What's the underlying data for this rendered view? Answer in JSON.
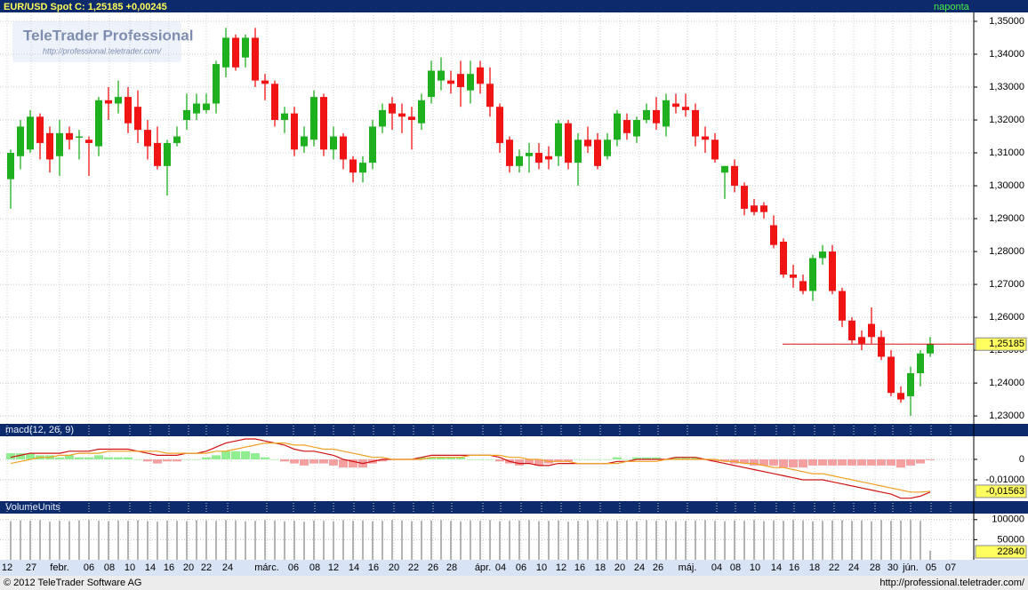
{
  "header": {
    "title": "EUR/USD  Spot  C: 1,25185  +0,00245",
    "period": "naponta"
  },
  "logo": {
    "name": "TeleTrader Professional",
    "url": "http://professional.teletrader.com/"
  },
  "footer": {
    "copyright": "© 2012 TeleTrader Software AG",
    "url": "http://professional.teletrader.com/"
  },
  "chart_data": [
    {
      "type": "candlestick",
      "x_labels": [
        "12",
        "27",
        "febr.",
        "06",
        "08",
        "10",
        "14",
        "16",
        "20",
        "22",
        "24",
        "márc.",
        "06",
        "08",
        "12",
        "14",
        "16",
        "20",
        "22",
        "26",
        "28",
        "ápr.",
        "04",
        "06",
        "10",
        "12",
        "16",
        "18",
        "20",
        "24",
        "26",
        "máj.",
        "04",
        "08",
        "10",
        "14",
        "16",
        "18",
        "22",
        "24",
        "28",
        "30",
        "jún.",
        "05",
        "07"
      ],
      "open": [
        1.302,
        1.309,
        1.311,
        1.321,
        1.316,
        1.309,
        1.316,
        1.315,
        1.314,
        1.312,
        1.326,
        1.325,
        1.327,
        1.324,
        1.317,
        1.313,
        1.306,
        1.313,
        1.32,
        1.322,
        1.323,
        1.325,
        1.336,
        1.345,
        1.339,
        1.345,
        1.332,
        1.331,
        1.32,
        1.322,
        1.312,
        1.314,
        1.327,
        1.311,
        1.315,
        1.308,
        1.304,
        1.307,
        1.318,
        1.325,
        1.322,
        1.321,
        1.319,
        1.327,
        1.332,
        1.332,
        1.334,
        1.329,
        1.336,
        1.331,
        1.324,
        1.314,
        1.306,
        1.309,
        1.31,
        1.309,
        1.309,
        1.319,
        1.307,
        1.314,
        1.314,
        1.309,
        1.314,
        1.32,
        1.315,
        1.32,
        1.323,
        1.318,
        1.325,
        1.324,
        1.323,
        1.315,
        1.314,
        1.304,
        1.306,
        1.3,
        1.294,
        1.294,
        1.288,
        1.283,
        1.273,
        1.271,
        1.268,
        1.278,
        1.28,
        1.268,
        1.259,
        1.254,
        1.258,
        1.254,
        1.248,
        1.237,
        1.236,
        1.243,
        1.249
      ],
      "high": [
        1.311,
        1.32,
        1.323,
        1.322,
        1.318,
        1.32,
        1.318,
        1.317,
        1.315,
        1.327,
        1.33,
        1.332,
        1.33,
        1.329,
        1.32,
        1.318,
        1.314,
        1.318,
        1.328,
        1.328,
        1.328,
        1.338,
        1.348,
        1.346,
        1.346,
        1.348,
        1.334,
        1.332,
        1.324,
        1.324,
        1.318,
        1.329,
        1.328,
        1.318,
        1.316,
        1.309,
        1.309,
        1.32,
        1.325,
        1.327,
        1.325,
        1.324,
        1.328,
        1.338,
        1.339,
        1.335,
        1.338,
        1.338,
        1.338,
        1.336,
        1.325,
        1.315,
        1.311,
        1.313,
        1.313,
        1.312,
        1.32,
        1.32,
        1.316,
        1.318,
        1.316,
        1.316,
        1.323,
        1.322,
        1.321,
        1.325,
        1.327,
        1.328,
        1.328,
        1.328,
        1.325,
        1.318,
        1.316,
        1.306,
        1.308,
        1.301,
        1.296,
        1.295,
        1.291,
        1.284,
        1.276,
        1.273,
        1.279,
        1.282,
        1.282,
        1.269,
        1.26,
        1.256,
        1.263,
        1.256,
        1.25,
        1.239,
        1.245,
        1.25,
        1.254
      ],
      "low": [
        1.293,
        1.305,
        1.31,
        1.308,
        1.304,
        1.303,
        1.311,
        1.308,
        1.303,
        1.309,
        1.32,
        1.322,
        1.316,
        1.313,
        1.308,
        1.305,
        1.297,
        1.312,
        1.317,
        1.32,
        1.322,
        1.322,
        1.333,
        1.335,
        1.336,
        1.33,
        1.326,
        1.318,
        1.316,
        1.309,
        1.31,
        1.312,
        1.309,
        1.308,
        1.305,
        1.301,
        1.301,
        1.305,
        1.316,
        1.317,
        1.316,
        1.311,
        1.317,
        1.325,
        1.329,
        1.328,
        1.324,
        1.325,
        1.328,
        1.321,
        1.31,
        1.304,
        1.304,
        1.304,
        1.305,
        1.305,
        1.306,
        1.305,
        1.3,
        1.31,
        1.305,
        1.308,
        1.312,
        1.314,
        1.313,
        1.319,
        1.317,
        1.315,
        1.322,
        1.321,
        1.312,
        1.31,
        1.307,
        1.296,
        1.298,
        1.291,
        1.291,
        1.29,
        1.281,
        1.272,
        1.269,
        1.267,
        1.265,
        1.276,
        1.267,
        1.257,
        1.252,
        1.25,
        1.252,
        1.247,
        1.236,
        1.234,
        1.23,
        1.239,
        1.248
      ],
      "close": [
        1.31,
        1.318,
        1.321,
        1.313,
        1.308,
        1.316,
        1.314,
        1.315,
        1.313,
        1.326,
        1.325,
        1.327,
        1.319,
        1.317,
        1.312,
        1.306,
        1.313,
        1.315,
        1.323,
        1.325,
        1.325,
        1.337,
        1.345,
        1.336,
        1.345,
        1.332,
        1.331,
        1.32,
        1.322,
        1.311,
        1.315,
        1.327,
        1.311,
        1.315,
        1.308,
        1.304,
        1.307,
        1.318,
        1.323,
        1.322,
        1.321,
        1.32,
        1.326,
        1.335,
        1.335,
        1.331,
        1.33,
        1.334,
        1.331,
        1.324,
        1.313,
        1.306,
        1.309,
        1.31,
        1.307,
        1.308,
        1.319,
        1.307,
        1.314,
        1.312,
        1.306,
        1.314,
        1.322,
        1.316,
        1.32,
        1.323,
        1.319,
        1.326,
        1.324,
        1.323,
        1.315,
        1.314,
        1.308,
        1.306,
        1.3,
        1.293,
        1.292,
        1.292,
        1.282,
        1.273,
        1.272,
        1.268,
        1.278,
        1.28,
        1.268,
        1.259,
        1.253,
        1.252,
        1.254,
        1.248,
        1.237,
        1.235,
        1.243,
        1.249,
        1.25185
      ],
      "up_color": "#1fb01f",
      "down_color": "#f01414",
      "ylim": [
        1.2276,
        1.3527
      ],
      "yticks": [
        {
          "value": 1.35,
          "label": "1,35000"
        },
        {
          "value": 1.34,
          "label": "1,34000"
        },
        {
          "value": 1.33,
          "label": "1,33000"
        },
        {
          "value": 1.32,
          "label": "1,32000"
        },
        {
          "value": 1.31,
          "label": "1,31000"
        },
        {
          "value": 1.3,
          "label": "1,30000"
        },
        {
          "value": 1.29,
          "label": "1,29000"
        },
        {
          "value": 1.28,
          "label": "1,28000"
        },
        {
          "value": 1.27,
          "label": "1,27000"
        },
        {
          "value": 1.26,
          "label": "1,26000"
        },
        {
          "value": 1.25,
          "label": "1,25000"
        },
        {
          "value": 1.24,
          "label": "1,24000"
        },
        {
          "value": 1.23,
          "label": "1,23000"
        }
      ],
      "last": {
        "value": 1.25185,
        "label": "1,25185"
      },
      "grid": true
    },
    {
      "type": "macd",
      "title": "macd(12, 26, 9)",
      "series": [
        {
          "color": "#d01010",
          "values": [
            0.001,
            0.002,
            0.003,
            0.003,
            0.003,
            0.003,
            0.004,
            0.004,
            0.004,
            0.005,
            0.005,
            0.005,
            0.005,
            0.004,
            0.003,
            0.002,
            0.002,
            0.002,
            0.003,
            0.003,
            0.004,
            0.006,
            0.008,
            0.009,
            0.01,
            0.01,
            0.009,
            0.008,
            0.007,
            0.005,
            0.004,
            0.004,
            0.003,
            0.002,
            0.0,
            -0.001,
            -0.002,
            -0.001,
            0.0,
            0.0,
            0.0,
            0.0,
            0.001,
            0.002,
            0.002,
            0.002,
            0.002,
            0.002,
            0.002,
            0.002,
            0.001,
            -0.001,
            -0.002,
            -0.002,
            -0.003,
            -0.003,
            -0.002,
            -0.002,
            -0.002,
            -0.002,
            -0.002,
            -0.002,
            -0.001,
            -0.001,
            0.0,
            0.0,
            0.0,
            0.0,
            0.001,
            0.001,
            0.001,
            0.0,
            -0.001,
            -0.002,
            -0.003,
            -0.004,
            -0.005,
            -0.006,
            -0.007,
            -0.008,
            -0.009,
            -0.01,
            -0.01,
            -0.01,
            -0.011,
            -0.012,
            -0.013,
            -0.014,
            -0.015,
            -0.016,
            -0.017,
            -0.019,
            -0.019,
            -0.018,
            -0.016
          ]
        },
        {
          "color": "#f0a020",
          "values": [
            -0.002,
            -0.001,
            0.0,
            0.001,
            0.001,
            0.002,
            0.002,
            0.003,
            0.003,
            0.003,
            0.004,
            0.004,
            0.004,
            0.004,
            0.004,
            0.004,
            0.003,
            0.003,
            0.003,
            0.003,
            0.003,
            0.004,
            0.004,
            0.005,
            0.006,
            0.007,
            0.008,
            0.008,
            0.008,
            0.007,
            0.007,
            0.006,
            0.005,
            0.005,
            0.004,
            0.003,
            0.002,
            0.001,
            0.001,
            0.0,
            0.0,
            0.0,
            0.0,
            0.001,
            0.001,
            0.001,
            0.001,
            0.002,
            0.002,
            0.002,
            0.002,
            0.001,
            0.001,
            0.0,
            0.0,
            -0.001,
            -0.001,
            -0.001,
            -0.002,
            -0.002,
            -0.002,
            -0.002,
            -0.002,
            -0.001,
            -0.001,
            -0.001,
            -0.001,
            0.0,
            0.0,
            0.0,
            0.0,
            0.0,
            0.0,
            -0.001,
            -0.001,
            -0.002,
            -0.002,
            -0.003,
            -0.004,
            -0.004,
            -0.005,
            -0.006,
            -0.007,
            -0.007,
            -0.008,
            -0.009,
            -0.01,
            -0.011,
            -0.012,
            -0.013,
            -0.014,
            -0.015,
            -0.016,
            -0.016,
            -0.01563
          ]
        }
      ],
      "histogram": {
        "up_color": "#90ee90",
        "down_color": "#f4a0a0",
        "values": [
          0.003,
          0.003,
          0.003,
          0.002,
          0.002,
          0.001,
          0.002,
          0.001,
          0.001,
          0.002,
          0.001,
          0.001,
          0.001,
          0.0,
          -0.001,
          -0.002,
          -0.001,
          -0.001,
          0.0,
          0.0,
          0.001,
          0.002,
          0.004,
          0.004,
          0.004,
          0.003,
          0.001,
          0.0,
          -0.001,
          -0.002,
          -0.003,
          -0.002,
          -0.002,
          -0.003,
          -0.004,
          -0.004,
          -0.004,
          -0.002,
          -0.001,
          0.0,
          0.0,
          0.0,
          0.001,
          0.001,
          0.001,
          0.001,
          0.001,
          0.0,
          0.0,
          0.0,
          -0.001,
          -0.002,
          -0.003,
          -0.002,
          -0.003,
          -0.002,
          -0.001,
          -0.001,
          0.0,
          0.0,
          0.0,
          0.0,
          0.001,
          0.0,
          0.001,
          0.001,
          0.001,
          0.0,
          0.001,
          0.001,
          0.001,
          0.0,
          -0.001,
          -0.001,
          -0.002,
          -0.002,
          -0.003,
          -0.003,
          -0.003,
          -0.004,
          -0.004,
          -0.004,
          -0.003,
          -0.003,
          -0.003,
          -0.003,
          -0.003,
          -0.003,
          -0.003,
          -0.003,
          -0.003,
          -0.004,
          -0.003,
          -0.002,
          -0.0004
        ]
      },
      "ylim": [
        -0.02,
        0.0113
      ],
      "yticks": [
        0,
        {
          "value": -0.01,
          "label": "-0,01000"
        }
      ],
      "last": {
        "value": -0.01563,
        "label": "-0,01563"
      }
    },
    {
      "type": "volume",
      "title": "VolumeUnits",
      "color": "#9a9a9a",
      "values": [
        96000,
        98000,
        97000,
        99000,
        95000,
        97000,
        96000,
        98000,
        99000,
        97000,
        96000,
        98000,
        97000,
        99000,
        96000,
        95000,
        98000,
        97000,
        96000,
        99000,
        98000,
        97000,
        99000,
        98000,
        96000,
        97000,
        99000,
        98000,
        96000,
        97000,
        95000,
        98000,
        97000,
        96000,
        99000,
        97000,
        98000,
        96000,
        97000,
        99000,
        98000,
        96000,
        97000,
        98000,
        99000,
        97000,
        96000,
        98000,
        97000,
        99000,
        96000,
        97000,
        98000,
        99000,
        96000,
        97000,
        98000,
        95000,
        97000,
        98000,
        99000,
        96000,
        97000,
        98000,
        96000,
        99000,
        97000,
        98000,
        96000,
        97000,
        98000,
        99000,
        97000,
        96000,
        98000,
        97000,
        99000,
        96000,
        98000,
        97000,
        99000,
        98000,
        96000,
        97000,
        98000,
        99000,
        97000,
        98000,
        96000,
        99000,
        97000,
        98000,
        99000,
        97000,
        22840
      ],
      "ylim": [
        0,
        115000
      ],
      "yticks": [
        100000,
        50000
      ]
    }
  ]
}
